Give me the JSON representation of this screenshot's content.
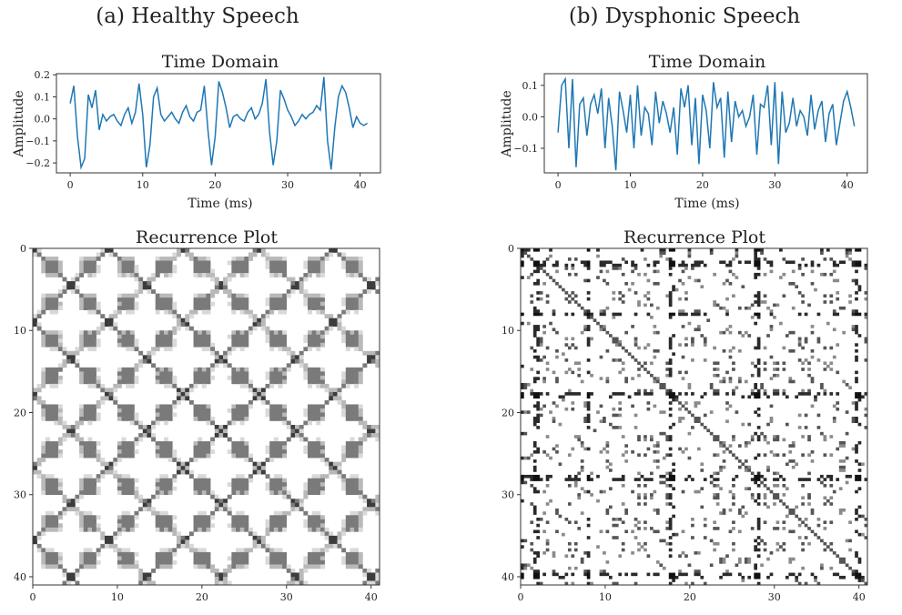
{
  "colors": {
    "line": "#1f77b4",
    "axis": "#333333",
    "rp_dark": "#111111",
    "rp_mid": "#8a8a8a",
    "rp_light": "#d9d9d9"
  },
  "chart_data": [
    {
      "type": "line",
      "panel": "a",
      "panel_title": "(a) Healthy Speech",
      "title": "Time Domain",
      "xlabel": "Time (ms)",
      "ylabel": "Amplitude",
      "xlim": [
        -1.9,
        42.8
      ],
      "ylim": [
        -0.245,
        0.205
      ],
      "xticks": [
        0,
        10,
        20,
        30,
        40
      ],
      "yticks": [
        -0.2,
        -0.1,
        0.0,
        0.1,
        0.2
      ],
      "ytick_labels": [
        "−0.2",
        "−0.1",
        "0.0",
        "0.1",
        "0.2"
      ],
      "grid": false,
      "series": [
        {
          "x": [
            0,
            0.5,
            1,
            1.5,
            2,
            2.5,
            3,
            3.5,
            4,
            4.5,
            5,
            5.5,
            6,
            6.5,
            7,
            7.5,
            8,
            8.5,
            9,
            9.5,
            10,
            10.5,
            11,
            11.5,
            12,
            12.5,
            13,
            13.5,
            14,
            14.5,
            15,
            15.5,
            16,
            16.5,
            17,
            17.5,
            18,
            18.5,
            19,
            19.5,
            20,
            20.5,
            21,
            21.5,
            22,
            22.5,
            23,
            23.5,
            24,
            24.5,
            25,
            25.5,
            26,
            26.5,
            27,
            27.5,
            28,
            28.5,
            29,
            29.5,
            30,
            30.5,
            31,
            31.5,
            32,
            32.5,
            33,
            33.5,
            34,
            34.5,
            35,
            35.5,
            36,
            36.5,
            37,
            37.5,
            38,
            38.5,
            39,
            39.5,
            40,
            40.5,
            41
          ],
          "y": [
            0.07,
            0.15,
            -0.08,
            -0.22,
            -0.18,
            0.11,
            0.05,
            0.13,
            -0.05,
            0.02,
            -0.01,
            0.01,
            0.02,
            -0.01,
            -0.03,
            0.02,
            0.05,
            -0.02,
            0.03,
            0.16,
            0.02,
            -0.22,
            -0.12,
            0.1,
            0.14,
            0.02,
            -0.01,
            0.01,
            0.03,
            0.0,
            -0.02,
            0.03,
            0.06,
            0.01,
            -0.01,
            0.03,
            0.04,
            0.15,
            -0.05,
            -0.21,
            -0.08,
            0.17,
            0.12,
            0.05,
            -0.04,
            0.01,
            0.02,
            0.0,
            -0.01,
            0.03,
            0.05,
            0.0,
            0.02,
            0.07,
            0.18,
            -0.06,
            -0.21,
            -0.1,
            0.13,
            0.09,
            0.04,
            0.01,
            -0.03,
            -0.01,
            0.02,
            0.0,
            0.02,
            0.03,
            0.06,
            0.04,
            0.19,
            -0.1,
            -0.23,
            -0.04,
            0.1,
            0.15,
            0.12,
            0.05,
            -0.04,
            0.01,
            -0.02,
            -0.03,
            -0.02
          ]
        }
      ]
    },
    {
      "type": "line",
      "panel": "b",
      "panel_title": "(b) Dysphonic Speech",
      "title": "Time Domain",
      "xlabel": "Time (ms)",
      "ylabel": "Amplitude",
      "xlim": [
        -1.9,
        42.8
      ],
      "ylim": [
        -0.178,
        0.137
      ],
      "xticks": [
        0,
        10,
        20,
        30,
        40
      ],
      "yticks": [
        -0.1,
        0.0,
        0.1
      ],
      "ytick_labels": [
        "−0.1",
        "0.0",
        "0.1"
      ],
      "grid": false,
      "series": [
        {
          "x": [
            0,
            0.5,
            1,
            1.5,
            2,
            2.5,
            3,
            3.5,
            4,
            4.5,
            5,
            5.5,
            6,
            6.5,
            7,
            7.5,
            8,
            8.5,
            9,
            9.5,
            10,
            10.5,
            11,
            11.5,
            12,
            12.5,
            13,
            13.5,
            14,
            14.5,
            15,
            15.5,
            16,
            16.5,
            17,
            17.5,
            18,
            18.5,
            19,
            19.5,
            20,
            20.5,
            21,
            21.5,
            22,
            22.5,
            23,
            23.5,
            24,
            24.5,
            25,
            25.5,
            26,
            26.5,
            27,
            27.5,
            28,
            28.5,
            29,
            29.5,
            30,
            30.5,
            31,
            31.5,
            32,
            32.5,
            33,
            33.5,
            34,
            34.5,
            35,
            35.5,
            36,
            36.5,
            37,
            37.5,
            38,
            38.5,
            39,
            39.5,
            40,
            40.5,
            41
          ],
          "y": [
            -0.05,
            0.1,
            0.12,
            -0.1,
            0.12,
            -0.16,
            0.04,
            0.06,
            -0.06,
            0.04,
            0.07,
            0.01,
            0.09,
            -0.1,
            0.06,
            -0.03,
            -0.17,
            0.08,
            0.02,
            -0.05,
            0.07,
            -0.1,
            0.1,
            -0.06,
            0.03,
            0.01,
            -0.09,
            0.08,
            -0.02,
            0.05,
            0.01,
            -0.05,
            0.03,
            -0.12,
            0.09,
            0.03,
            0.1,
            -0.09,
            0.06,
            -0.15,
            0.07,
            0.02,
            -0.1,
            0.11,
            0.03,
            0.06,
            -0.13,
            0.08,
            -0.08,
            0.05,
            0.0,
            0.02,
            -0.03,
            0.0,
            0.07,
            -0.12,
            0.04,
            0.03,
            0.1,
            -0.09,
            0.11,
            -0.15,
            0.08,
            -0.05,
            -0.02,
            0.06,
            -0.03,
            0.02,
            0.0,
            -0.06,
            0.07,
            -0.04,
            0.02,
            0.05,
            -0.08,
            0.01,
            0.04,
            -0.09,
            -0.02,
            0.05,
            0.08,
            0.03,
            -0.03
          ]
        }
      ]
    },
    {
      "type": "heatmap",
      "panel": "a",
      "title": "Recurrence Plot",
      "xlim": [
        0,
        41
      ],
      "ylim": [
        41,
        0
      ],
      "xticks": [
        0,
        10,
        20,
        30,
        40
      ],
      "yticks": [
        0,
        10,
        20,
        30,
        40
      ],
      "period": 8.9,
      "grid": false
    },
    {
      "type": "heatmap",
      "panel": "b",
      "title": "Recurrence Plot",
      "xlim": [
        0,
        41
      ],
      "ylim": [
        41,
        0
      ],
      "xticks": [
        0,
        10,
        20,
        30,
        40
      ],
      "yticks": [
        0,
        10,
        20,
        30,
        40
      ],
      "strong_lines": [
        0.2,
        2,
        8,
        18,
        28,
        40
      ],
      "grid": false
    }
  ]
}
